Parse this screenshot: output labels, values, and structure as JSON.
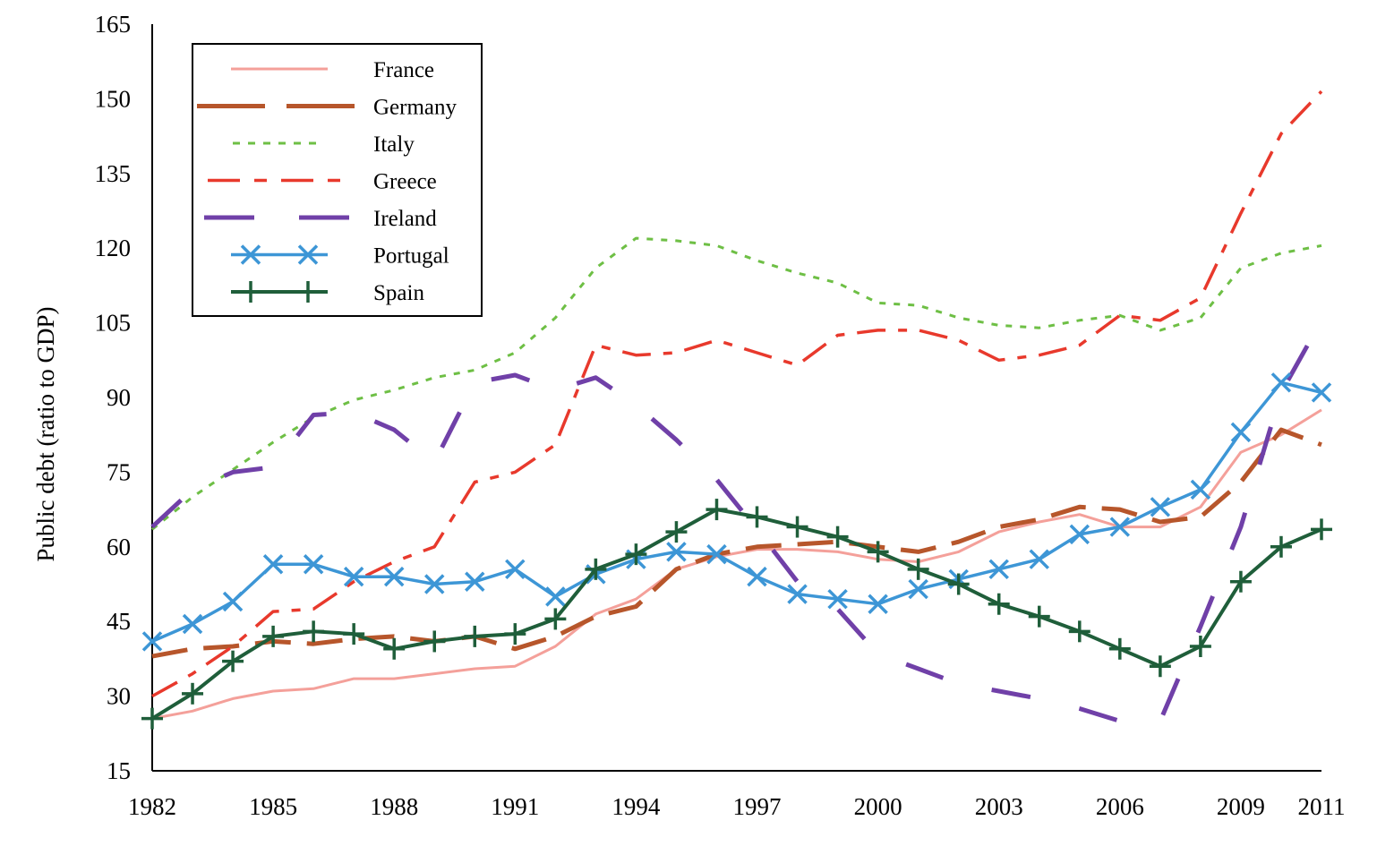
{
  "chart_data": {
    "type": "line",
    "title": "",
    "xlabel": "",
    "ylabel": "Public debt (ratio to GDP)",
    "xlim": [
      1982,
      2011
    ],
    "ylim": [
      15,
      165
    ],
    "y_ticks": [
      15,
      30,
      45,
      60,
      75,
      90,
      105,
      120,
      135,
      150,
      165
    ],
    "x_tick_labels": [
      "1982",
      "1985",
      "1988",
      "1991",
      "1994",
      "1997",
      "2000",
      "2003",
      "2006",
      "2009",
      "2011"
    ],
    "grid": false,
    "legend_position": "top-left",
    "x": [
      1982,
      1983,
      1984,
      1985,
      1986,
      1987,
      1988,
      1989,
      1990,
      1991,
      1992,
      1993,
      1994,
      1995,
      1996,
      1997,
      1998,
      1999,
      2000,
      2001,
      2002,
      2003,
      2004,
      2005,
      2006,
      2007,
      2008,
      2009,
      2010,
      2011
    ],
    "series": [
      {
        "name": "France",
        "color": "#f4a09a",
        "line_style": "solid",
        "marker": "none",
        "values": [
          25.5,
          27,
          29.5,
          31,
          31.5,
          33.5,
          33.5,
          34.5,
          35.5,
          36,
          40,
          46.5,
          49.5,
          55.5,
          58,
          59.5,
          59.5,
          59,
          57.5,
          57,
          59,
          63,
          65,
          66.5,
          64,
          64,
          68,
          79,
          82.5,
          87.5
        ]
      },
      {
        "name": "Germany",
        "color": "#b7562b",
        "line_style": "long-dash",
        "marker": "none",
        "values": [
          38,
          39.5,
          40,
          41,
          40.5,
          41.5,
          42,
          41,
          42,
          39.5,
          42,
          46,
          48,
          55.5,
          58.5,
          60,
          60.5,
          61,
          60,
          59,
          61,
          64,
          65.5,
          68,
          67.5,
          65,
          66,
          73,
          83.5,
          80.5
        ]
      },
      {
        "name": "Italy",
        "color": "#6ebf45",
        "line_style": "dotted",
        "marker": "none",
        "values": [
          63.5,
          70,
          75.5,
          81,
          86,
          89.5,
          91.5,
          94,
          95.5,
          99,
          106,
          116,
          122,
          121.5,
          120.5,
          117.5,
          115,
          113,
          109,
          108.5,
          106,
          104.5,
          104,
          105.5,
          106.5,
          103.5,
          106,
          116,
          119,
          120.5
        ]
      },
      {
        "name": "Greece",
        "color": "#e8392c",
        "line_style": "dash-dot",
        "marker": "none",
        "values": [
          30,
          34.5,
          40,
          47,
          47.5,
          53,
          57,
          60,
          73,
          75,
          80.5,
          100.5,
          98.5,
          99,
          101.5,
          99,
          96.5,
          102.5,
          103.5,
          103.5,
          101.5,
          97.5,
          98.5,
          100.5,
          106.5,
          105.5,
          110,
          127,
          143,
          151.5
        ]
      },
      {
        "name": "Ireland",
        "color": "#7040a8",
        "line_style": "long-gap-dash",
        "marker": "none",
        "values": [
          64,
          71.5,
          75,
          76,
          86.5,
          87,
          83.5,
          77,
          93,
          94.5,
          91.5,
          94,
          88.5,
          81.5,
          73.5,
          63.5,
          53,
          47.5,
          38.5,
          35.5,
          32.5,
          31,
          29.5,
          27.5,
          25,
          25,
          44,
          64,
          91,
          105.5
        ]
      },
      {
        "name": "Portugal",
        "color": "#3d96d6",
        "line_style": "solid",
        "marker": "x",
        "values": [
          41,
          44.5,
          49,
          56.5,
          56.5,
          54,
          54,
          52.5,
          53,
          55.5,
          50,
          54.5,
          57.5,
          59,
          58.5,
          54,
          50.5,
          49.5,
          48.5,
          51.5,
          53.5,
          55.5,
          57.5,
          62.5,
          64,
          68,
          71.5,
          83,
          93,
          91
        ]
      },
      {
        "name": "Spain",
        "color": "#1f5e3a",
        "line_style": "solid",
        "marker": "plus",
        "values": [
          25.5,
          30.5,
          37,
          42,
          43,
          42.5,
          39.5,
          41,
          42,
          42.5,
          45.5,
          55.5,
          58.5,
          63,
          67.5,
          66,
          64,
          62,
          59,
          55.5,
          52.5,
          48.5,
          46,
          43,
          39.5,
          36,
          40,
          53,
          60,
          63.5
        ]
      }
    ]
  }
}
